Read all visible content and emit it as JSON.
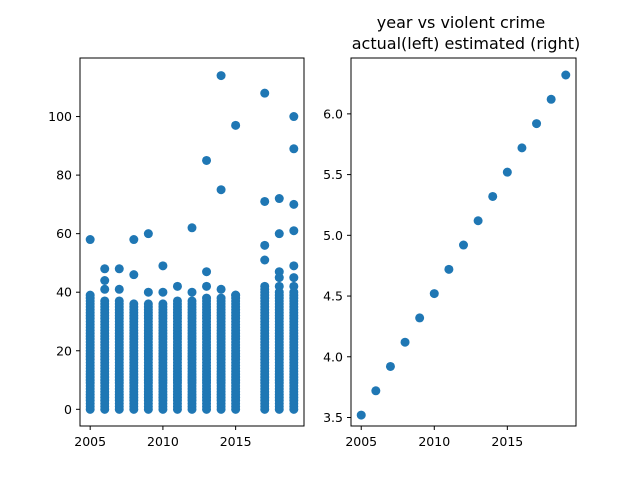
{
  "chart_data": [
    {
      "type": "scatter",
      "title": "",
      "xlabel": "",
      "ylabel": "",
      "xlim": [
        2004.3,
        2019.7
      ],
      "ylim": [
        -5.7,
        120
      ],
      "xticks": [
        2005,
        2010,
        2015
      ],
      "yticks": [
        0,
        20,
        40,
        60,
        80,
        100
      ],
      "color": "#1f77b4",
      "grid": false,
      "years": [
        2005,
        2006,
        2007,
        2008,
        2009,
        2010,
        2011,
        2012,
        2013,
        2014,
        2015,
        2017,
        2018,
        2019
      ],
      "dense_max": [
        39,
        37,
        37,
        36,
        36,
        36,
        37,
        37,
        38,
        38,
        39,
        41,
        40,
        40
      ],
      "outliers": [
        {
          "x": 2005,
          "y": 58
        },
        {
          "x": 2006,
          "y": 48
        },
        {
          "x": 2006,
          "y": 44
        },
        {
          "x": 2006,
          "y": 41
        },
        {
          "x": 2007,
          "y": 48
        },
        {
          "x": 2007,
          "y": 41
        },
        {
          "x": 2008,
          "y": 58
        },
        {
          "x": 2008,
          "y": 46
        },
        {
          "x": 2009,
          "y": 60
        },
        {
          "x": 2009,
          "y": 40
        },
        {
          "x": 2010,
          "y": 49
        },
        {
          "x": 2010,
          "y": 40
        },
        {
          "x": 2011,
          "y": 42
        },
        {
          "x": 2012,
          "y": 62
        },
        {
          "x": 2012,
          "y": 40
        },
        {
          "x": 2013,
          "y": 85
        },
        {
          "x": 2013,
          "y": 47
        },
        {
          "x": 2013,
          "y": 42
        },
        {
          "x": 2014,
          "y": 114
        },
        {
          "x": 2014,
          "y": 75
        },
        {
          "x": 2014,
          "y": 41
        },
        {
          "x": 2015,
          "y": 97
        },
        {
          "x": 2015,
          "y": 39
        },
        {
          "x": 2017,
          "y": 108
        },
        {
          "x": 2017,
          "y": 71
        },
        {
          "x": 2017,
          "y": 56
        },
        {
          "x": 2017,
          "y": 51
        },
        {
          "x": 2017,
          "y": 42
        },
        {
          "x": 2018,
          "y": 72
        },
        {
          "x": 2018,
          "y": 60
        },
        {
          "x": 2018,
          "y": 47
        },
        {
          "x": 2018,
          "y": 45
        },
        {
          "x": 2018,
          "y": 42
        },
        {
          "x": 2019,
          "y": 100
        },
        {
          "x": 2019,
          "y": 89
        },
        {
          "x": 2019,
          "y": 70
        },
        {
          "x": 2019,
          "y": 61
        },
        {
          "x": 2019,
          "y": 49
        },
        {
          "x": 2019,
          "y": 45
        },
        {
          "x": 2019,
          "y": 42
        }
      ]
    },
    {
      "type": "scatter",
      "title": "year vs violent crime\nactual(left) estimated (right)",
      "xlabel": "",
      "ylabel": "",
      "xlim": [
        2004.3,
        2019.7
      ],
      "ylim": [
        3.43,
        6.46
      ],
      "xticks": [
        2005,
        2010,
        2015
      ],
      "yticks": [
        3.5,
        4.0,
        4.5,
        5.0,
        5.5,
        6.0
      ],
      "ytick_labels": [
        "3.5",
        "4.0",
        "4.5",
        "5.0",
        "5.5",
        "6.0"
      ],
      "color": "#1f77b4",
      "grid": false,
      "x": [
        2005,
        2006,
        2007,
        2008,
        2009,
        2010,
        2011,
        2012,
        2013,
        2014,
        2015,
        2016,
        2017,
        2018,
        2019
      ],
      "y": [
        3.52,
        3.72,
        3.92,
        4.12,
        4.32,
        4.52,
        4.72,
        4.92,
        5.12,
        5.32,
        5.52,
        5.72,
        5.92,
        6.12,
        6.32
      ]
    }
  ]
}
